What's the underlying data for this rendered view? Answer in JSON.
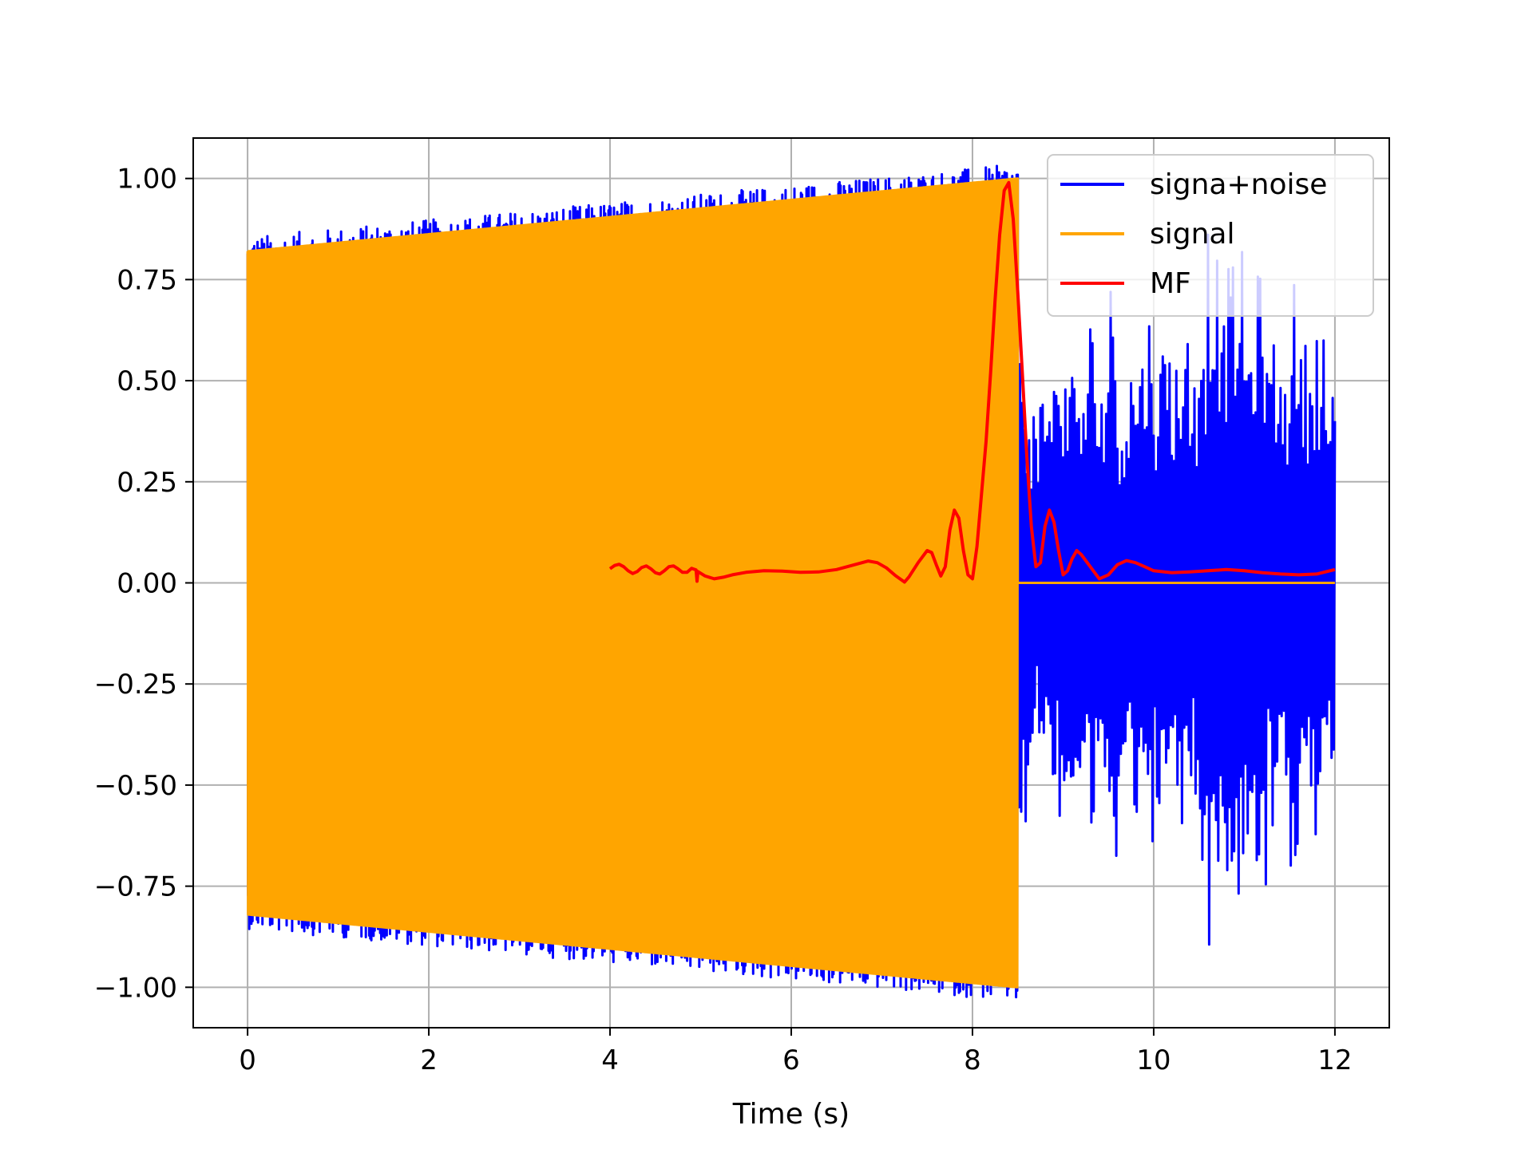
{
  "chart_data": {
    "type": "line",
    "title": "",
    "xlabel": "Time (s)",
    "ylabel": "",
    "xlim": [
      -0.6,
      12.6
    ],
    "ylim": [
      -1.1,
      1.1
    ],
    "x_ticks": [
      0,
      2,
      4,
      6,
      8,
      10,
      12
    ],
    "x_tick_labels": [
      "0",
      "2",
      "4",
      "6",
      "8",
      "10",
      "12"
    ],
    "y_ticks": [
      1.0,
      0.75,
      0.5,
      0.25,
      0.0,
      -0.25,
      -0.5,
      -0.75,
      -1.0
    ],
    "y_tick_labels": [
      "1.00",
      "0.75",
      "0.50",
      "0.25",
      "0.00",
      "−0.25",
      "−0.50",
      "−0.75",
      "−1.00"
    ],
    "grid": true,
    "legend_placement": "top-right",
    "series": [
      {
        "name": "signa+noise",
        "color": "#0000ff",
        "description_time_range": [
          0,
          12
        ],
        "noise_after_signal_amplitude_range": [
          -0.92,
          0.93
        ],
        "noise_samples": [
          [
            8.5,
            0.49
          ],
          [
            8.55,
            -0.62
          ],
          [
            8.6,
            0.4
          ],
          [
            8.65,
            -0.45
          ],
          [
            8.7,
            0.31
          ],
          [
            8.75,
            -0.38
          ],
          [
            8.8,
            0.5
          ],
          [
            8.85,
            -0.55
          ],
          [
            8.9,
            0.52
          ],
          [
            8.95,
            -0.42
          ],
          [
            9.0,
            0.58
          ],
          [
            9.05,
            -0.48
          ],
          [
            9.1,
            0.44
          ],
          [
            9.15,
            -0.56
          ],
          [
            9.2,
            0.37
          ],
          [
            9.25,
            -0.5
          ],
          [
            9.3,
            0.46
          ],
          [
            9.35,
            -0.66
          ],
          [
            9.4,
            0.35
          ],
          [
            9.45,
            -0.52
          ],
          [
            9.5,
            0.45
          ],
          [
            9.55,
            -0.75
          ],
          [
            9.6,
            0.3
          ],
          [
            9.65,
            -0.48
          ],
          [
            9.7,
            0.43
          ],
          [
            9.75,
            -0.5
          ],
          [
            9.8,
            0.56
          ],
          [
            9.85,
            -0.58
          ],
          [
            9.9,
            0.38
          ],
          [
            9.95,
            -0.68
          ],
          [
            10.0,
            0.48
          ],
          [
            10.05,
            -0.55
          ],
          [
            10.1,
            0.47
          ],
          [
            10.15,
            -0.62
          ],
          [
            10.2,
            0.46
          ],
          [
            10.25,
            -0.57
          ],
          [
            10.3,
            0.41
          ],
          [
            10.35,
            -0.63
          ],
          [
            10.4,
            0.4
          ],
          [
            10.45,
            -0.54
          ],
          [
            10.5,
            0.55
          ],
          [
            10.55,
            -0.72
          ],
          [
            10.6,
            0.71
          ],
          [
            10.65,
            -0.92
          ],
          [
            10.7,
            0.81
          ],
          [
            10.75,
            -0.67
          ],
          [
            10.8,
            0.62
          ],
          [
            10.85,
            -0.78
          ],
          [
            10.9,
            0.8
          ],
          [
            10.95,
            -0.82
          ],
          [
            11.0,
            0.68
          ],
          [
            11.05,
            -0.6
          ],
          [
            11.1,
            0.62
          ],
          [
            11.15,
            -0.75
          ],
          [
            11.2,
            0.77
          ],
          [
            11.25,
            -0.5
          ],
          [
            11.3,
            0.58
          ],
          [
            11.35,
            -0.61
          ],
          [
            11.4,
            0.55
          ],
          [
            11.45,
            -0.52
          ],
          [
            11.5,
            0.45
          ],
          [
            11.55,
            -0.75
          ],
          [
            11.6,
            0.53
          ],
          [
            11.65,
            -0.6
          ],
          [
            11.7,
            0.47
          ],
          [
            11.75,
            -0.58
          ],
          [
            11.8,
            0.65
          ],
          [
            11.85,
            -0.64
          ],
          [
            11.9,
            0.49
          ],
          [
            11.95,
            -0.5
          ],
          [
            12.0,
            0.4
          ]
        ]
      },
      {
        "name": "signal",
        "color": "#ffa500",
        "description": "chirp oscillation with linearly increasing envelope from 0 to 8.5 s, zero afterwards",
        "envelope": [
          [
            0,
            0.82
          ],
          [
            8.5,
            1.0
          ]
        ],
        "zero_after": 8.5,
        "end_time": 12.0
      },
      {
        "name": "MF",
        "color": "#ff0000",
        "points": [
          [
            4.0,
            0.035
          ],
          [
            4.05,
            0.043
          ],
          [
            4.1,
            0.046
          ],
          [
            4.15,
            0.04
          ],
          [
            4.2,
            0.03
          ],
          [
            4.25,
            0.023
          ],
          [
            4.3,
            0.028
          ],
          [
            4.35,
            0.038
          ],
          [
            4.4,
            0.042
          ],
          [
            4.45,
            0.035
          ],
          [
            4.5,
            0.025
          ],
          [
            4.55,
            0.022
          ],
          [
            4.6,
            0.03
          ],
          [
            4.65,
            0.04
          ],
          [
            4.7,
            0.042
          ],
          [
            4.75,
            0.035
          ],
          [
            4.8,
            0.026
          ],
          [
            4.85,
            0.026
          ],
          [
            4.9,
            0.036
          ],
          [
            4.95,
            0.032
          ],
          [
            4.96,
            0.004
          ],
          [
            4.97,
            0.028
          ],
          [
            5.05,
            0.017
          ],
          [
            5.15,
            0.01
          ],
          [
            5.25,
            0.014
          ],
          [
            5.35,
            0.02
          ],
          [
            5.5,
            0.026
          ],
          [
            5.7,
            0.03
          ],
          [
            5.9,
            0.029
          ],
          [
            6.1,
            0.026
          ],
          [
            6.3,
            0.027
          ],
          [
            6.5,
            0.033
          ],
          [
            6.7,
            0.045
          ],
          [
            6.85,
            0.054
          ],
          [
            6.95,
            0.05
          ],
          [
            7.05,
            0.037
          ],
          [
            7.15,
            0.018
          ],
          [
            7.25,
            0.002
          ],
          [
            7.3,
            0.015
          ],
          [
            7.4,
            0.05
          ],
          [
            7.5,
            0.08
          ],
          [
            7.55,
            0.075
          ],
          [
            7.6,
            0.045
          ],
          [
            7.65,
            0.017
          ],
          [
            7.7,
            0.04
          ],
          [
            7.75,
            0.13
          ],
          [
            7.8,
            0.18
          ],
          [
            7.85,
            0.16
          ],
          [
            7.9,
            0.08
          ],
          [
            7.95,
            0.02
          ],
          [
            8.0,
            0.01
          ],
          [
            8.05,
            0.09
          ],
          [
            8.1,
            0.22
          ],
          [
            8.15,
            0.35
          ],
          [
            8.2,
            0.52
          ],
          [
            8.25,
            0.7
          ],
          [
            8.3,
            0.86
          ],
          [
            8.35,
            0.97
          ],
          [
            8.4,
            0.99
          ],
          [
            8.45,
            0.9
          ],
          [
            8.5,
            0.72
          ],
          [
            8.55,
            0.52
          ],
          [
            8.6,
            0.31
          ],
          [
            8.65,
            0.14
          ],
          [
            8.7,
            0.04
          ],
          [
            8.75,
            0.05
          ],
          [
            8.8,
            0.14
          ],
          [
            8.85,
            0.18
          ],
          [
            8.9,
            0.15
          ],
          [
            8.95,
            0.08
          ],
          [
            9.0,
            0.02
          ],
          [
            9.05,
            0.03
          ],
          [
            9.1,
            0.06
          ],
          [
            9.15,
            0.08
          ],
          [
            9.2,
            0.07
          ],
          [
            9.3,
            0.04
          ],
          [
            9.4,
            0.01
          ],
          [
            9.5,
            0.02
          ],
          [
            9.6,
            0.045
          ],
          [
            9.7,
            0.055
          ],
          [
            9.8,
            0.05
          ],
          [
            9.9,
            0.04
          ],
          [
            10.0,
            0.03
          ],
          [
            10.2,
            0.025
          ],
          [
            10.4,
            0.027
          ],
          [
            10.6,
            0.03
          ],
          [
            10.8,
            0.033
          ],
          [
            11.0,
            0.03
          ],
          [
            11.2,
            0.025
          ],
          [
            11.4,
            0.022
          ],
          [
            11.6,
            0.02
          ],
          [
            11.8,
            0.022
          ],
          [
            12.0,
            0.033
          ]
        ]
      }
    ]
  }
}
